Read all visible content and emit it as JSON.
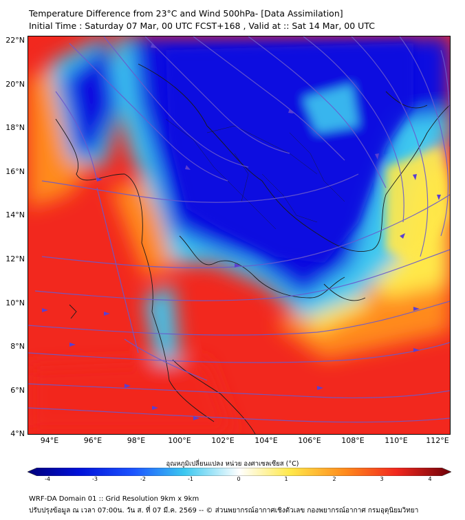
{
  "title_line1": "Temperature Difference from 23°C and Wind 500hPa- [Data Assimilation]",
  "title_line2": "Initial Time : Saturday 07 Mar, 00 UTC FCST+168 , Valid at ::  Sat 14 Mar, 00 UTC",
  "map": {
    "lon_range": [
      93,
      112.5
    ],
    "lat_range": [
      4,
      22.2
    ],
    "lat_ticks": [
      "4°N",
      "6°N",
      "8°N",
      "10°N",
      "12°N",
      "14°N",
      "16°N",
      "18°N",
      "20°N",
      "22°N"
    ],
    "lon_ticks": [
      "94°E",
      "96°E",
      "98°E",
      "100°E",
      "102°E",
      "104°E",
      "106°E",
      "108°E",
      "110°E",
      "112°E"
    ],
    "colors": {
      "deep_blue": "#0a10e0",
      "cyan": "#3cc8f0",
      "yellow": "#ffe84a",
      "orange": "#ff8a1c",
      "red": "#f2281e",
      "streamline": "#6a5acd"
    }
  },
  "colorbar": {
    "label": "อุณหภูมิเปลี่ยนแปลง หน่วย องศาเซลเซียส (°C)",
    "ticks": [
      "-4",
      "-3",
      "-2",
      "-1",
      "0",
      "1",
      "2",
      "3",
      "4"
    ],
    "range": [
      -4,
      4
    ]
  },
  "footer_line1": "WRF-DA Domain 01 :: Grid Resolution 9km x 9km",
  "footer_line2": "ปรับปรุงข้อมูล ณ เวลา 07:00น. วัน ส. ที่ 07 มี.ค. 2569 -- © ส่วนพยากรณ์อากาศเชิงตัวเลข กองพยากรณ์อากาศ กรมอุตุนิยมวิทยา"
}
